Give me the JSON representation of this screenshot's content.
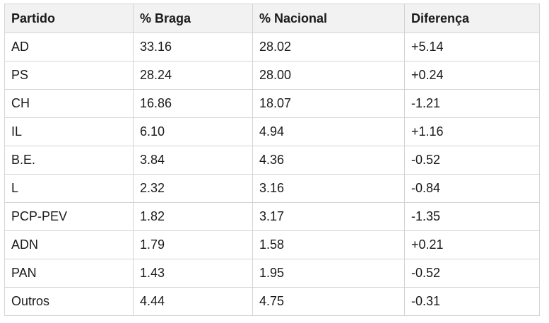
{
  "table": {
    "headers": [
      "Partido",
      "% Braga",
      "% Nacional",
      "Diferença"
    ],
    "rows": [
      [
        "AD",
        "33.16",
        "28.02",
        "+5.14"
      ],
      [
        "PS",
        "28.24",
        "28.00",
        "+0.24"
      ],
      [
        "CH",
        "16.86",
        "18.07",
        "-1.21"
      ],
      [
        "IL",
        "6.10",
        "4.94",
        "+1.16"
      ],
      [
        "B.E.",
        "3.84",
        "4.36",
        "-0.52"
      ],
      [
        "L",
        "2.32",
        "3.16",
        "-0.84"
      ],
      [
        "PCP-PEV",
        "1.82",
        "3.17",
        "-1.35"
      ],
      [
        "ADN",
        "1.79",
        "1.58",
        "+0.21"
      ],
      [
        "PAN",
        "1.43",
        "1.95",
        "-0.52"
      ],
      [
        "Outros",
        "4.44",
        "4.75",
        "-0.31"
      ]
    ]
  }
}
